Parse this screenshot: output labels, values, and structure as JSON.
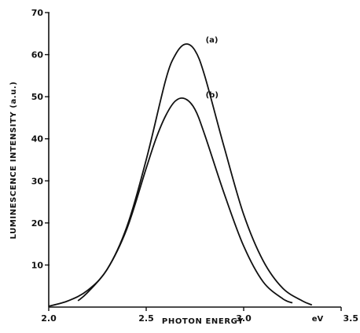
{
  "chart_data": {
    "type": "line",
    "xlabel": "PHOTON ENERGY",
    "ylabel": "LUMINESCENCE INTENSITY (a.u.)",
    "x_unit": "eV",
    "xlim": [
      2.0,
      3.5
    ],
    "ylim": [
      0,
      70
    ],
    "x_ticks": [
      "2.0",
      "2.5",
      "3.0",
      "3.5"
    ],
    "y_ticks": [
      "10",
      "20",
      "30",
      "40",
      "50",
      "60",
      "70"
    ],
    "grid": false,
    "series": [
      {
        "name": "(a)",
        "x": [
          2.0,
          2.1,
          2.2,
          2.3,
          2.4,
          2.5,
          2.6,
          2.65,
          2.7,
          2.75,
          2.8,
          2.9,
          3.0,
          3.1,
          3.2,
          3.3,
          3.35
        ],
        "y": [
          0.2,
          1.5,
          4.0,
          9.0,
          19.0,
          35.0,
          54.0,
          60.0,
          62.5,
          61.0,
          55.0,
          38.0,
          22.0,
          11.0,
          4.5,
          1.5,
          0.5
        ]
      },
      {
        "name": "(b)",
        "x": [
          2.15,
          2.2,
          2.3,
          2.4,
          2.5,
          2.55,
          2.6,
          2.65,
          2.7,
          2.75,
          2.8,
          2.9,
          3.0,
          3.1,
          3.2,
          3.25
        ],
        "y": [
          1.5,
          3.5,
          9.0,
          18.5,
          33.0,
          40.0,
          45.5,
          49.0,
          49.5,
          47.0,
          41.0,
          27.0,
          14.5,
          6.0,
          2.0,
          1.0
        ]
      }
    ]
  }
}
